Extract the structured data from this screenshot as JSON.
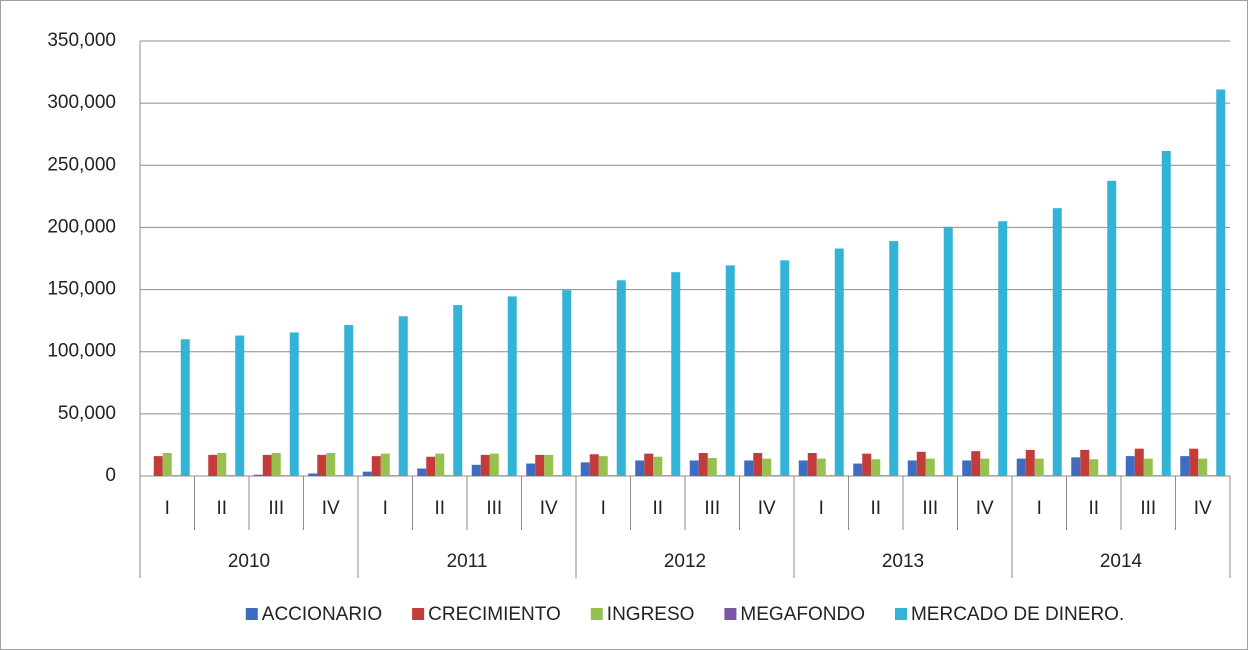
{
  "chart_data": {
    "type": "bar",
    "categories": [
      "I",
      "II",
      "III",
      "IV",
      "I",
      "II",
      "III",
      "IV",
      "I",
      "II",
      "III",
      "IV",
      "I",
      "II",
      "III",
      "IV",
      "I",
      "II",
      "III",
      "IV"
    ],
    "years": [
      "2010",
      "2011",
      "2012",
      "2013",
      "2014"
    ],
    "series": [
      {
        "name": "ACCIONARIO",
        "color": "#3d6cc0",
        "values": [
          0,
          0,
          1000,
          2000,
          3500,
          6000,
          9000,
          10000,
          11000,
          12500,
          12500,
          12500,
          12500,
          10000,
          12500,
          12500,
          14000,
          15000,
          16000,
          16000
        ]
      },
      {
        "name": "CRECIMIENTO",
        "color": "#c43c3a",
        "values": [
          16000,
          17000,
          17000,
          17000,
          16000,
          15500,
          17000,
          17000,
          17500,
          18000,
          18500,
          18500,
          18500,
          18000,
          19500,
          20000,
          21000,
          21000,
          22000,
          22000
        ]
      },
      {
        "name": "INGRESO",
        "color": "#98c04e",
        "values": [
          18500,
          18500,
          18500,
          18500,
          18000,
          18000,
          18000,
          17000,
          16000,
          15500,
          14500,
          14000,
          14000,
          13500,
          14000,
          14000,
          14000,
          13500,
          14000,
          14000
        ]
      },
      {
        "name": "MEGAFONDO",
        "color": "#7b55a8",
        "values": [
          500,
          500,
          500,
          500,
          500,
          500,
          500,
          500,
          500,
          500,
          500,
          500,
          500,
          500,
          500,
          500,
          500,
          500,
          500,
          500
        ]
      },
      {
        "name": "MERCADO DE DINERO.",
        "color": "#33b3d6",
        "values": [
          110000,
          113000,
          115500,
          121500,
          128500,
          137500,
          144500,
          149500,
          157500,
          164000,
          169500,
          173500,
          183000,
          189000,
          200500,
          205000,
          215500,
          237500,
          261500,
          311000
        ]
      }
    ],
    "ylim": [
      0,
      350000
    ],
    "yticks": [
      0,
      {
        "value": 50000,
        "label": "50,000"
      },
      {
        "value": 100000,
        "label": "100,000"
      },
      {
        "value": 150000,
        "label": "150,000"
      },
      {
        "value": 200000,
        "label": "200,000"
      },
      {
        "value": 250000,
        "label": "250,000"
      },
      {
        "value": 300000,
        "label": "300,000"
      },
      {
        "value": 350000,
        "label": "350,000"
      }
    ],
    "grid": true
  }
}
